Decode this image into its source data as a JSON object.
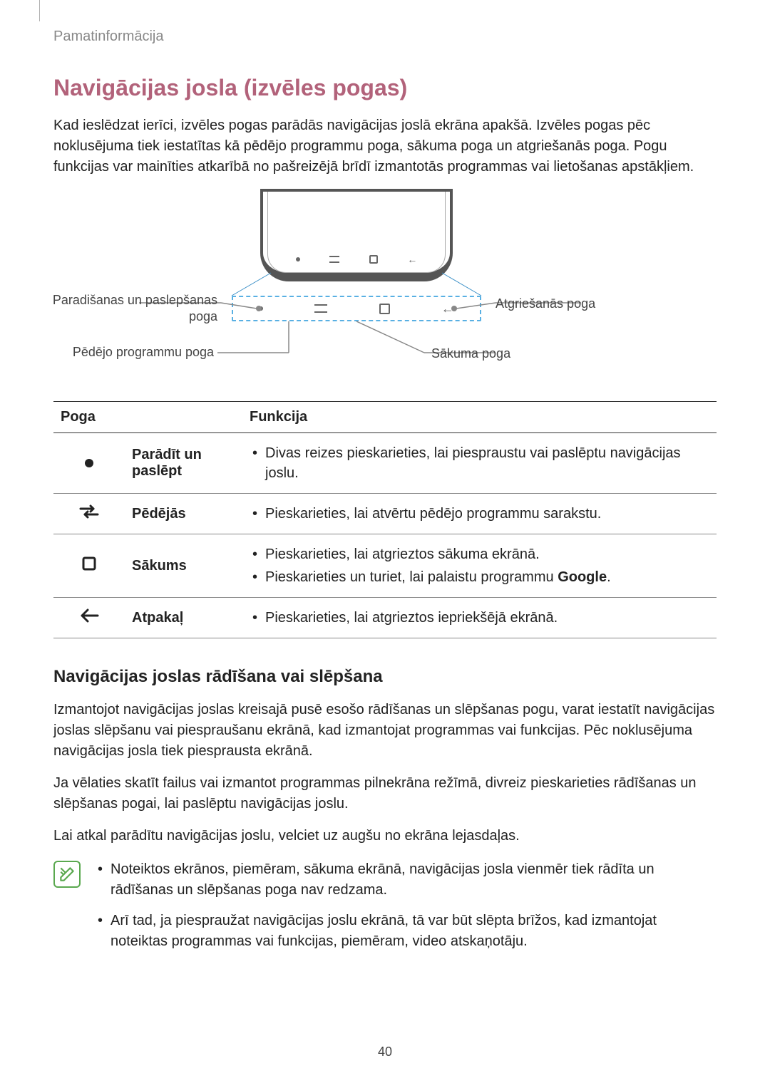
{
  "header": {
    "breadcrumb": "Pamatinformācija"
  },
  "section": {
    "title": "Navigācijas josla (izvēles pogas)",
    "title_color": "#b2627a",
    "intro": "Kad ieslēdzat ierīci, izvēles pogas parādās navigācijas joslā ekrāna apakšā. Izvēles pogas pēc noklusējuma tiek iestatītas kā pēdējo programmu poga, sākuma poga un atgriešanās poga. Pogu funkcijas var mainīties atkarībā no pašreizējā brīdī izmantotās programmas vai lietošanas apstākļiem."
  },
  "diagram": {
    "labels": {
      "left_top": "Paradišanas un paslepšanas poga",
      "left_bottom": "Pēdējo programmu poga",
      "right_top": "Atgriešanās poga",
      "right_bottom": "Sākuma poga"
    }
  },
  "table": {
    "headers": {
      "col1": "Poga",
      "col2": "Funkcija"
    },
    "rows": [
      {
        "icon": "dot",
        "name": "Parādīt un paslēpt",
        "items": [
          "Divas reizes pieskarieties, lai piespraustu vai paslēptu navigācijas joslu."
        ]
      },
      {
        "icon": "recents",
        "name": "Pēdējās",
        "items": [
          "Pieskarieties, lai atvērtu pēdējo programmu sarakstu."
        ]
      },
      {
        "icon": "home",
        "name": "Sākums",
        "items": [
          "Pieskarieties, lai atgrieztos sākuma ekrānā.",
          "Pieskarieties un turiet, lai palaistu programmu <b>Google</b>."
        ]
      },
      {
        "icon": "back",
        "name": "Atpakaļ",
        "items": [
          "Pieskarieties, lai atgrieztos iepriekšējā ekrānā."
        ]
      }
    ]
  },
  "subheading": "Navigācijas joslas rādīšana vai slēpšana",
  "paragraphs": [
    "Izmantojot navigācijas joslas kreisajā pusē esošo rādīšanas un slēpšanas pogu, varat iestatīt navigācijas joslas slēpšanu vai piespraušanu ekrānā, kad izmantojat programmas vai funkcijas. Pēc noklusējuma navigācijas josla tiek piesprausta ekrānā.",
    "Ja vēlaties skatīt failus vai izmantot programmas pilnekrāna režīmā, divreiz pieskarieties rādīšanas un slēpšanas pogai, lai paslēptu navigācijas joslu.",
    "Lai atkal parādītu navigācijas joslu, velciet uz augšu no ekrāna lejasdaļas."
  ],
  "notes": [
    "Noteiktos ekrānos, piemēram, sākuma ekrānā, navigācijas josla vienmēr tiek rādīta un rādīšanas un slēpšanas poga nav redzama.",
    "Arī tad, ja piespraužat navigācijas joslu ekrānā, tā var būt slēpta brīžos, kad izmantojat noteiktas programmas vai funkcijas, piemēram, video atskaņotāju."
  ],
  "page_number": "40"
}
